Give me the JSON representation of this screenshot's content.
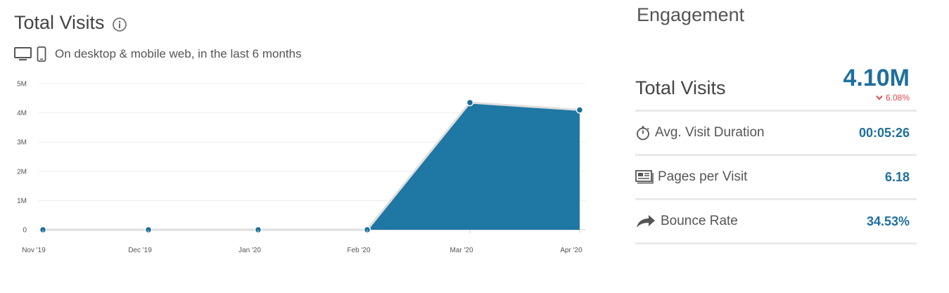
{
  "visits": {
    "title": "Total Visits",
    "subtitle": "On desktop & mobile web, in the last 6 months"
  },
  "chart_data": {
    "type": "area",
    "categories": [
      "Nov '19",
      "Dec '19",
      "Jan '20",
      "Feb '20",
      "Mar '20",
      "Apr '20"
    ],
    "values": [
      0,
      0,
      0,
      0,
      4350000,
      4100000
    ],
    "ylim": [
      0,
      5000000
    ],
    "yticks": [
      "0",
      "1M",
      "2M",
      "3M",
      "4M",
      "5M"
    ],
    "grid": true,
    "color": "#1f77a4"
  },
  "engagement": {
    "title": "Engagement",
    "total_visits": {
      "label": "Total Visits",
      "value": "4.10M",
      "change": "6.08%"
    },
    "metrics": [
      {
        "icon": "stopwatch-icon",
        "label": "Avg. Visit Duration",
        "value": "00:05:26"
      },
      {
        "icon": "pages-icon",
        "label": "Pages per Visit",
        "value": "6.18"
      },
      {
        "icon": "bounce-arrow-icon",
        "label": "Bounce Rate",
        "value": "34.53%"
      }
    ]
  }
}
